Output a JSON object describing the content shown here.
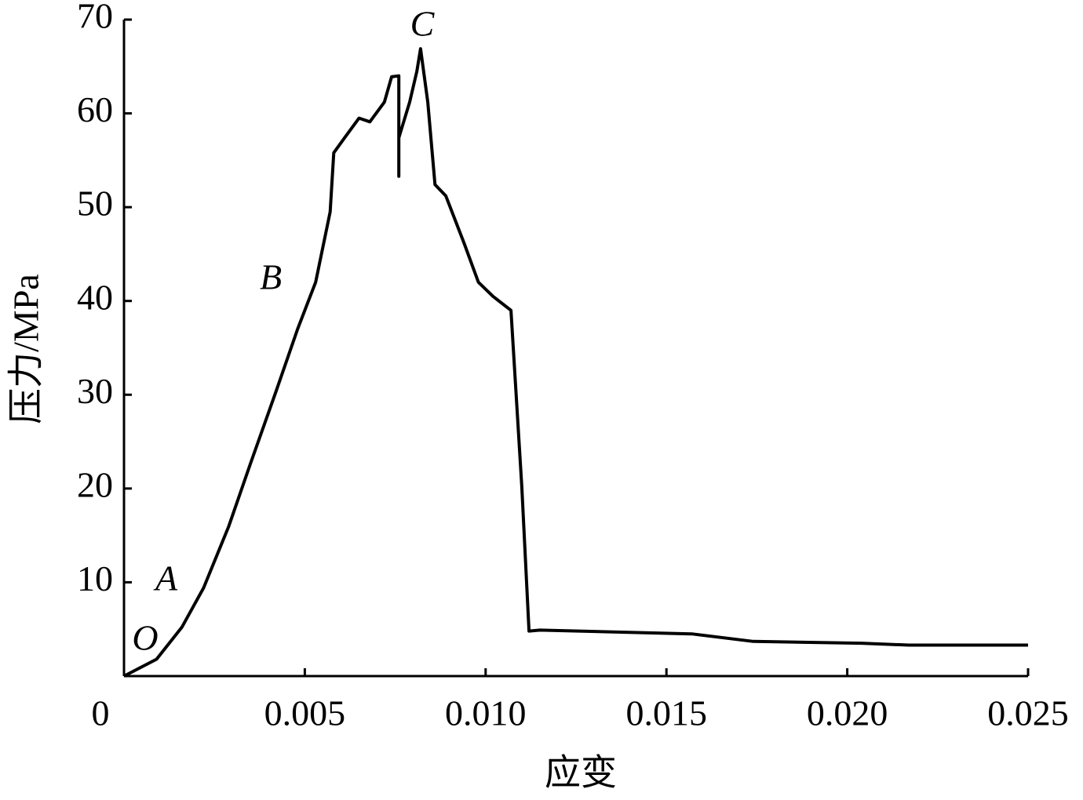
{
  "chart_data": {
    "type": "line",
    "x_label": "应变",
    "y_label": "压力/MPa",
    "xlim": [
      0,
      0.025
    ],
    "ylim": [
      0,
      70
    ],
    "xticks": [
      0,
      0.005,
      {
        "value": 0.01,
        "label": "0.010"
      },
      0.015,
      {
        "value": 0.02,
        "label": "0.020"
      },
      0.025
    ],
    "yticks": [
      10,
      20,
      30,
      40,
      50,
      60,
      70
    ],
    "annotations": [
      "O",
      "A",
      "B",
      "C"
    ],
    "series": [
      {
        "color": "#000000",
        "x": [
          0,
          0.0009,
          0.0016,
          0.0022,
          0.0029,
          0.0035,
          0.0042,
          0.0048,
          0.0053,
          0.0057,
          0.0058,
          0.0061,
          0.0065,
          0.0068,
          0.0072,
          0.0074,
          0.0076,
          0.0076,
          0.0076,
          0.0079,
          0.0081,
          0.0082,
          0.0084,
          0.0086,
          0.0089,
          0.0094,
          0.0098,
          0.0102,
          0.0107,
          0.011,
          0.0112,
          0.0115,
          0.0157,
          0.0174,
          0.0204,
          0.0217,
          0.025
        ],
        "values": [
          0,
          1.8,
          5.2,
          9.4,
          16,
          22.7,
          30.3,
          37,
          42,
          49.5,
          55.8,
          57.4,
          59.5,
          59.1,
          61.2,
          63.9,
          64,
          53.3,
          57.4,
          61.2,
          64.5,
          66.9,
          61.2,
          52.4,
          51.2,
          46.2,
          42,
          40.5,
          39,
          20.2,
          4.8,
          4.9,
          4.5,
          3.7,
          3.5,
          3.3,
          3.3
        ]
      }
    ]
  }
}
